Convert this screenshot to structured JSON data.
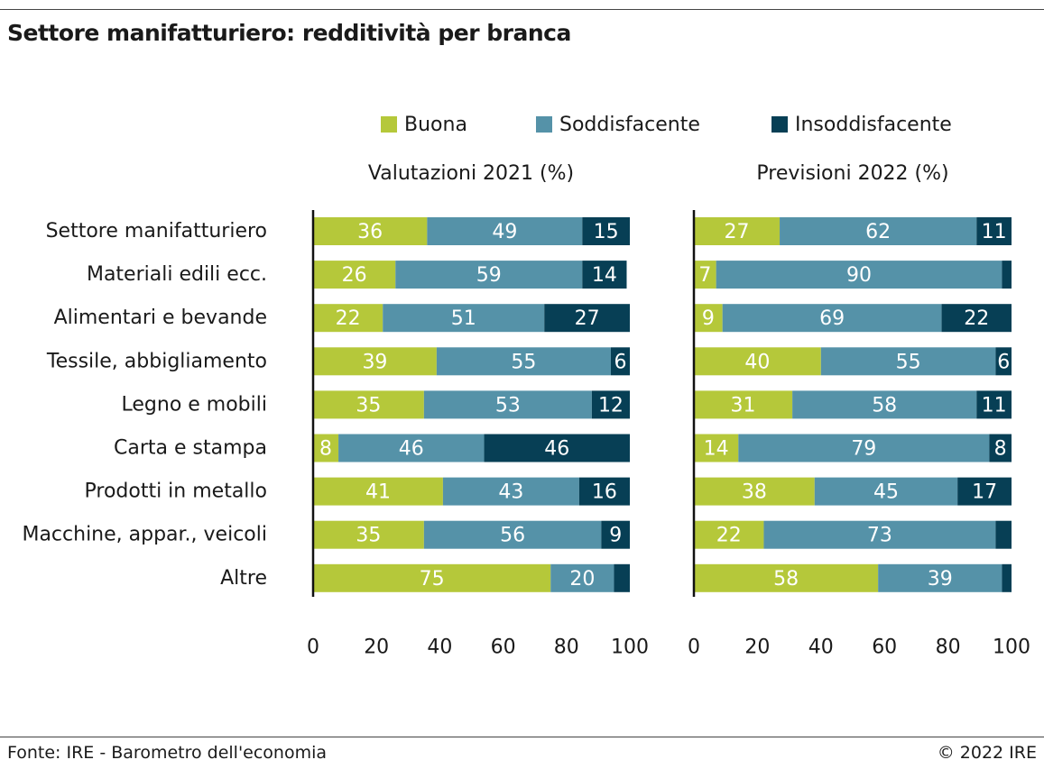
{
  "title": "Settore manifatturiero: redditività per branca",
  "footer": {
    "source": "Fonte: IRE - Barometro dell'economia",
    "copyright": "© 2022 IRE"
  },
  "colors": {
    "buona": "#b5c83a",
    "soddisfacente": "#5592a8",
    "insoddisfacente": "#073f55"
  },
  "chart_data": {
    "type": "bar",
    "orientation": "horizontal",
    "stacked": true,
    "legend": [
      "Buona",
      "Soddisfacente",
      "Insoddisfacente"
    ],
    "legend_placement": "top",
    "categories": [
      "Settore manifatturiero",
      "Materiali edili ecc.",
      "Alimentari e bevande",
      "Tessile, abbigliamento",
      "Legno e mobili",
      "Carta e stampa",
      "Prodotti in metallo",
      "Macchine, appar., veicoli",
      "Altre"
    ],
    "xlim": [
      0,
      100
    ],
    "xticks": [
      0,
      20,
      40,
      60,
      80,
      100
    ],
    "panels": [
      {
        "title": "Valutazioni 2021 (%)",
        "series": [
          {
            "name": "Buona",
            "values": [
              36,
              26,
              22,
              39,
              35,
              8,
              41,
              35,
              75
            ]
          },
          {
            "name": "Soddisfacente",
            "values": [
              49,
              59,
              51,
              55,
              53,
              46,
              43,
              56,
              20
            ]
          },
          {
            "name": "Insoddisfacente",
            "values": [
              15,
              14,
              27,
              6,
              12,
              46,
              16,
              9,
              5
            ]
          }
        ],
        "value_labels": [
          [
            "36",
            "49",
            "15"
          ],
          [
            "26",
            "59",
            "14"
          ],
          [
            "22",
            "51",
            "27"
          ],
          [
            "39",
            "55",
            "6"
          ],
          [
            "35",
            "53",
            "12"
          ],
          [
            "8",
            "46",
            "46"
          ],
          [
            "41",
            "43",
            "16"
          ],
          [
            "35",
            "56",
            "9"
          ],
          [
            "75",
            "20",
            ""
          ]
        ]
      },
      {
        "title": "Previsioni 2022 (%)",
        "series": [
          {
            "name": "Buona",
            "values": [
              27,
              7,
              9,
              40,
              31,
              14,
              38,
              22,
              58
            ]
          },
          {
            "name": "Soddisfacente",
            "values": [
              62,
              90,
              69,
              55,
              58,
              79,
              45,
              73,
              39
            ]
          },
          {
            "name": "Insoddisfacente",
            "values": [
              11,
              3,
              22,
              6,
              11,
              8,
              17,
              5,
              3
            ]
          }
        ],
        "value_labels": [
          [
            "27",
            "62",
            "11"
          ],
          [
            "7",
            "90",
            ""
          ],
          [
            "9",
            "69",
            "22"
          ],
          [
            "40",
            "55",
            "6"
          ],
          [
            "31",
            "58",
            "11"
          ],
          [
            "14",
            "79",
            "8"
          ],
          [
            "38",
            "45",
            "17"
          ],
          [
            "22",
            "73",
            ""
          ],
          [
            "58",
            "39",
            ""
          ]
        ]
      }
    ]
  }
}
